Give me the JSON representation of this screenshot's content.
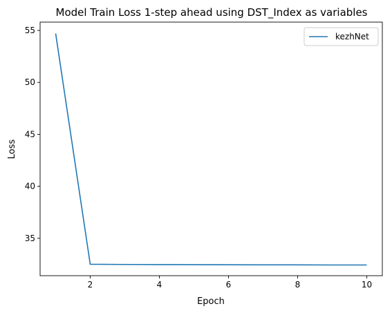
{
  "chart_data": {
    "type": "line",
    "title": "Model Train Loss 1-step ahead using DST_Index as variables",
    "xlabel": "Epoch",
    "ylabel": "Loss",
    "xlim": [
      0.55,
      10.45
    ],
    "ylim": [
      31.4,
      55.8
    ],
    "xticks": [
      2,
      4,
      6,
      8,
      10
    ],
    "yticks": [
      35,
      40,
      45,
      50,
      55
    ],
    "grid": false,
    "legend": "top-right",
    "series": [
      {
        "name": "kezhNet",
        "color": "#1f77b4",
        "x": [
          1,
          2,
          3,
          4,
          5,
          6,
          7,
          8,
          9,
          10
        ],
        "values": [
          54.7,
          32.5,
          32.48,
          32.47,
          32.46,
          32.45,
          32.44,
          32.44,
          32.43,
          32.43
        ]
      }
    ]
  }
}
